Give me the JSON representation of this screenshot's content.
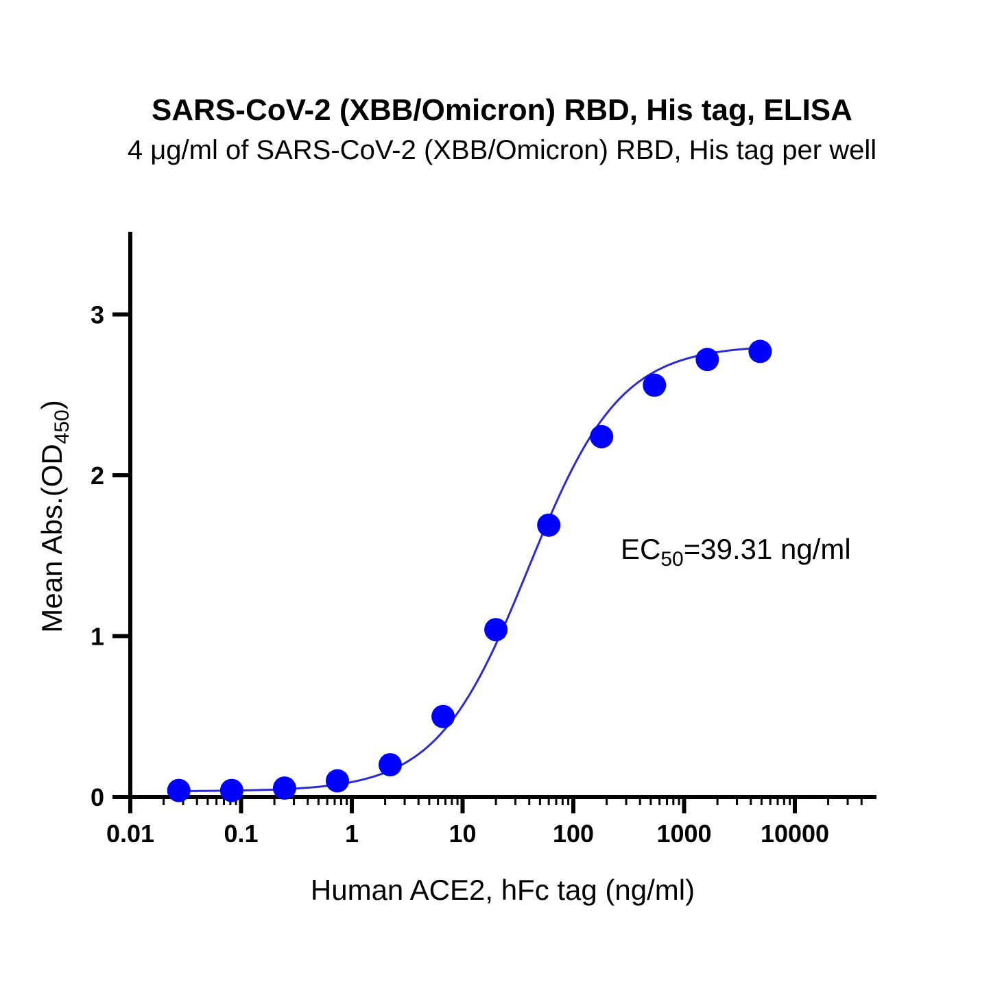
{
  "chart_data": {
    "type": "scatter",
    "title": "SARS-CoV-2 (XBB/Omicron) RBD, His tag, ELISA",
    "subtitle": "4 μg/ml of SARS-CoV-2 (XBB/Omicron) RBD, His tag per well",
    "xlabel": "Human ACE2, hFc tag (ng/ml)",
    "ylabel_main": "Mean Abs.(OD",
    "ylabel_sub": "450",
    "ylabel_end": ")",
    "x_scale": "log",
    "xlim": [
      0.01,
      50000
    ],
    "ylim": [
      0,
      3.5
    ],
    "x_ticks": [
      0.01,
      0.1,
      1,
      10,
      100,
      1000,
      10000
    ],
    "x_tick_labels": [
      "0.01",
      "0.1",
      "1",
      "10",
      "100",
      "1000",
      "10000"
    ],
    "y_ticks": [
      0,
      1,
      2,
      3
    ],
    "y_tick_labels": [
      "0",
      "1",
      "2",
      "3"
    ],
    "grid": false,
    "series_color": "#0000ff",
    "curve_color": "#2b2bd6",
    "x": [
      0.0274,
      0.0823,
      0.247,
      0.741,
      2.22,
      6.67,
      20,
      60,
      180,
      540,
      1620,
      4860
    ],
    "y": [
      0.04,
      0.04,
      0.055,
      0.1,
      0.2,
      0.5,
      1.04,
      1.69,
      2.24,
      2.56,
      2.72,
      2.77
    ],
    "fit": {
      "bottom": 0.035,
      "top": 2.81,
      "ec50": 39.31,
      "hill": 1.05,
      "x_range": [
        0.0274,
        4860
      ]
    },
    "annotation": {
      "prefix": "EC",
      "sub": "50",
      "suffix": "=39.31 ng/ml"
    }
  }
}
